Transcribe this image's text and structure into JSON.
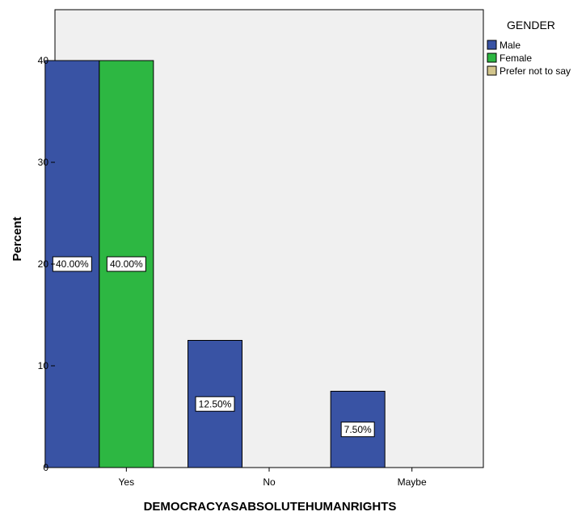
{
  "chart_data": {
    "type": "bar",
    "title": "",
    "xlabel": "DEMOCRACYASABSOLUTEHUMANRIGHTS",
    "ylabel": "Percent",
    "categories": [
      "Yes",
      "No",
      "Maybe"
    ],
    "ylim": [
      0,
      45
    ],
    "yticks": [
      0,
      10,
      20,
      30,
      40
    ],
    "grid": false,
    "legend_position": "top-right",
    "legend_title": "GENDER",
    "series": [
      {
        "name": "Male",
        "color": "#3953A4",
        "values": [
          40.0,
          12.5,
          7.5
        ],
        "labels": [
          "40.00%",
          "12.50%",
          "7.50%"
        ]
      },
      {
        "name": "Female",
        "color": "#2DB742",
        "values": [
          40.0,
          null,
          null
        ],
        "labels": [
          "40.00%",
          "",
          ""
        ]
      },
      {
        "name": "Prefer not to say",
        "color": "#D2C58C",
        "values": [
          null,
          null,
          null
        ],
        "labels": [
          "",
          "",
          ""
        ]
      }
    ],
    "plot_background": "#F0F0F0"
  }
}
